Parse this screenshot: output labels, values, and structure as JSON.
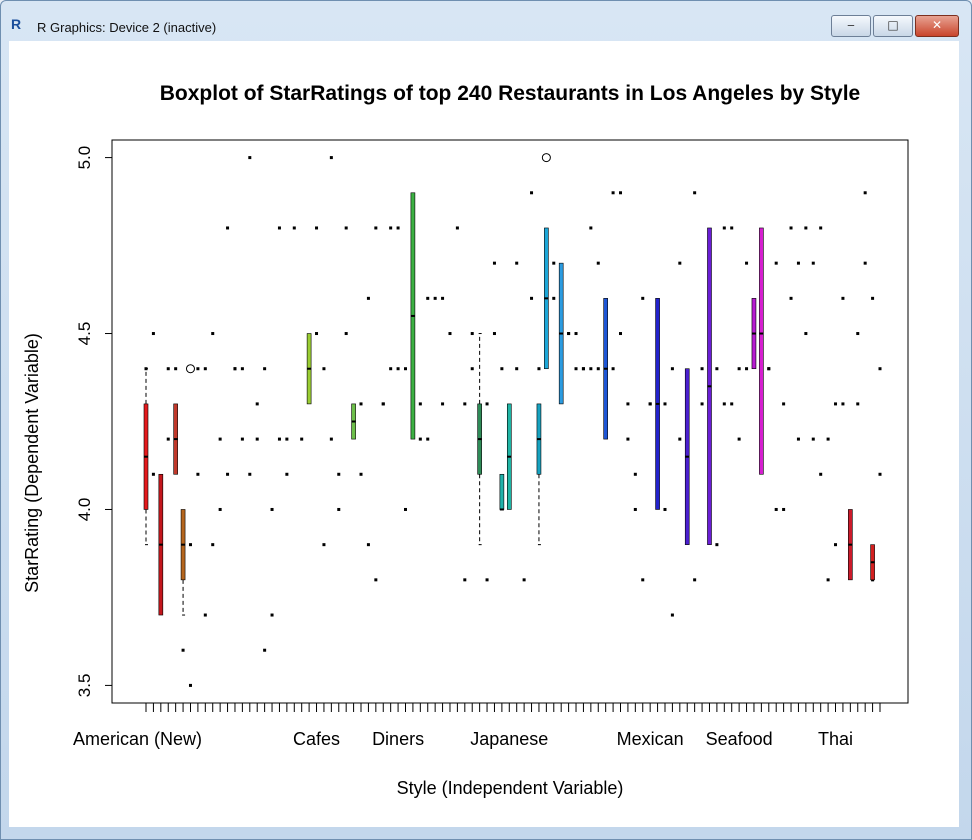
{
  "window": {
    "title": "R Graphics: Device 2 (inactive)",
    "app_icon": "R",
    "minimize_glyph": "‒",
    "maximize_glyph": "□",
    "close_glyph": "✕"
  },
  "chart_data": {
    "type": "boxplot",
    "title": "Boxplot of StarRatings of  top 240 Restaurants in Los Angeles by Style",
    "xlabel": "Style (Independent Variable)",
    "ylabel": "StarRating (Dependent Variable)",
    "ylim": [
      3.45,
      5.05
    ],
    "y_ticks": [
      "3.5",
      "4.0",
      "4.5",
      "5.0"
    ],
    "y_tick_values": [
      3.5,
      4.0,
      4.5,
      5.0
    ],
    "n_categories": 100,
    "x_tick_labels": [
      {
        "label": "American (New)",
        "index": 1
      },
      {
        "label": "Cafes",
        "index": 24
      },
      {
        "label": "Diners",
        "index": 35
      },
      {
        "label": "Japanese",
        "index": 50
      },
      {
        "label": "Mexican",
        "index": 69
      },
      {
        "label": "Seafood",
        "index": 81
      },
      {
        "label": "Thai",
        "index": 94
      }
    ],
    "grid": false,
    "boxes": [
      {
        "index": 1,
        "q1": 4.0,
        "q3": 4.3,
        "median": 4.15,
        "lower": 3.9,
        "upper": 4.4,
        "color": "#e31a1c"
      },
      {
        "index": 3,
        "q1": 3.7,
        "q3": 4.1,
        "median": 3.9,
        "lower": 3.7,
        "upper": 4.1,
        "color": "#c4161c"
      },
      {
        "index": 5,
        "q1": 4.1,
        "q3": 4.3,
        "median": 4.2,
        "lower": 4.1,
        "upper": 4.3,
        "color": "#c0392b"
      },
      {
        "index": 6,
        "q1": 3.8,
        "q3": 4.0,
        "median": 3.9,
        "lower": 3.7,
        "upper": 4.0,
        "color": "#b5651d"
      },
      {
        "index": 23,
        "q1": 4.3,
        "q3": 4.5,
        "median": 4.4,
        "lower": 4.3,
        "upper": 4.5,
        "color": "#9acd32"
      },
      {
        "index": 29,
        "q1": 4.2,
        "q3": 4.3,
        "median": 4.25,
        "lower": 4.2,
        "upper": 4.3,
        "color": "#6dbf4a"
      },
      {
        "index": 37,
        "q1": 4.2,
        "q3": 4.9,
        "median": 4.55,
        "lower": 4.2,
        "upper": 4.9,
        "color": "#3cb043"
      },
      {
        "index": 46,
        "q1": 4.1,
        "q3": 4.3,
        "median": 4.2,
        "lower": 3.9,
        "upper": 4.5,
        "color": "#2e8b57"
      },
      {
        "index": 49,
        "q1": 4.0,
        "q3": 4.1,
        "median": 4.0,
        "lower": 4.0,
        "upper": 4.1,
        "color": "#20b2aa"
      },
      {
        "index": 50,
        "q1": 4.0,
        "q3": 4.3,
        "median": 4.15,
        "lower": 4.0,
        "upper": 4.3,
        "color": "#1fb5a5"
      },
      {
        "index": 54,
        "q1": 4.1,
        "q3": 4.3,
        "median": 4.2,
        "lower": 3.9,
        "upper": 4.3,
        "color": "#17a2c0"
      },
      {
        "index": 55,
        "q1": 4.4,
        "q3": 4.8,
        "median": 4.6,
        "lower": 4.4,
        "upper": 4.8,
        "color": "#1ca7d8"
      },
      {
        "index": 57,
        "q1": 4.3,
        "q3": 4.7,
        "median": 4.5,
        "lower": 4.3,
        "upper": 4.7,
        "color": "#2b9be0"
      },
      {
        "index": 63,
        "q1": 4.2,
        "q3": 4.6,
        "median": 4.4,
        "lower": 4.2,
        "upper": 4.6,
        "color": "#1e56d6"
      },
      {
        "index": 70,
        "q1": 4.0,
        "q3": 4.6,
        "median": 4.3,
        "lower": 4.0,
        "upper": 4.6,
        "color": "#2222cc"
      },
      {
        "index": 74,
        "q1": 3.9,
        "q3": 4.4,
        "median": 4.15,
        "lower": 3.9,
        "upper": 4.4,
        "color": "#4a1fd0"
      },
      {
        "index": 77,
        "q1": 3.9,
        "q3": 4.8,
        "median": 4.35,
        "lower": 3.9,
        "upper": 4.8,
        "color": "#6a1ed6"
      },
      {
        "index": 83,
        "q1": 4.4,
        "q3": 4.6,
        "median": 4.5,
        "lower": 4.4,
        "upper": 4.6,
        "color": "#b61bd0"
      },
      {
        "index": 84,
        "q1": 4.1,
        "q3": 4.8,
        "median": 4.5,
        "lower": 4.1,
        "upper": 4.8,
        "color": "#d61ed0"
      },
      {
        "index": 96,
        "q1": 3.8,
        "q3": 4.0,
        "median": 3.9,
        "lower": 3.8,
        "upper": 4.0,
        "color": "#cc1a2a"
      },
      {
        "index": 99,
        "q1": 3.8,
        "q3": 3.9,
        "median": 3.85,
        "lower": 3.8,
        "upper": 3.9,
        "color": "#d31f1f"
      }
    ],
    "outliers": [
      {
        "index": 7,
        "value": 4.4
      },
      {
        "index": 55,
        "value": 5.0
      }
    ],
    "points": [
      [
        1,
        4.4
      ],
      [
        2,
        4.5
      ],
      [
        2,
        4.1
      ],
      [
        4,
        4.4
      ],
      [
        4,
        4.2
      ],
      [
        5,
        4.4
      ],
      [
        6,
        3.6
      ],
      [
        7,
        3.5
      ],
      [
        7,
        3.9
      ],
      [
        8,
        4.1
      ],
      [
        8,
        4.4
      ],
      [
        9,
        3.7
      ],
      [
        9,
        4.4
      ],
      [
        10,
        4.5
      ],
      [
        10,
        3.9
      ],
      [
        11,
        4.0
      ],
      [
        11,
        4.2
      ],
      [
        12,
        4.8
      ],
      [
        12,
        4.1
      ],
      [
        13,
        4.4
      ],
      [
        13,
        4.4
      ],
      [
        14,
        4.4
      ],
      [
        14,
        4.2
      ],
      [
        15,
        5.0
      ],
      [
        15,
        4.1
      ],
      [
        16,
        4.3
      ],
      [
        16,
        4.2
      ],
      [
        17,
        3.6
      ],
      [
        17,
        4.4
      ],
      [
        18,
        3.7
      ],
      [
        18,
        4.0
      ],
      [
        19,
        4.2
      ],
      [
        19,
        4.8
      ],
      [
        20,
        4.2
      ],
      [
        20,
        4.1
      ],
      [
        21,
        4.8
      ],
      [
        22,
        4.2
      ],
      [
        24,
        4.5
      ],
      [
        24,
        4.8
      ],
      [
        25,
        3.9
      ],
      [
        25,
        4.4
      ],
      [
        26,
        5.0
      ],
      [
        26,
        4.2
      ],
      [
        27,
        4.0
      ],
      [
        27,
        4.1
      ],
      [
        28,
        4.8
      ],
      [
        28,
        4.5
      ],
      [
        30,
        4.3
      ],
      [
        30,
        4.1
      ],
      [
        31,
        3.9
      ],
      [
        31,
        4.6
      ],
      [
        32,
        3.8
      ],
      [
        32,
        4.8
      ],
      [
        33,
        4.3
      ],
      [
        33,
        4.3
      ],
      [
        34,
        4.8
      ],
      [
        34,
        4.4
      ],
      [
        35,
        4.4
      ],
      [
        35,
        4.8
      ],
      [
        36,
        4.0
      ],
      [
        36,
        4.4
      ],
      [
        38,
        4.3
      ],
      [
        38,
        4.2
      ],
      [
        39,
        4.6
      ],
      [
        39,
        4.2
      ],
      [
        40,
        4.6
      ],
      [
        41,
        4.6
      ],
      [
        41,
        4.3
      ],
      [
        42,
        4.5
      ],
      [
        43,
        4.8
      ],
      [
        44,
        3.8
      ],
      [
        44,
        4.3
      ],
      [
        45,
        4.4
      ],
      [
        45,
        4.5
      ],
      [
        47,
        3.8
      ],
      [
        47,
        4.3
      ],
      [
        48,
        4.5
      ],
      [
        48,
        4.7
      ],
      [
        49,
        4.4
      ],
      [
        51,
        4.4
      ],
      [
        51,
        4.7
      ],
      [
        52,
        3.8
      ],
      [
        53,
        4.9
      ],
      [
        53,
        4.6
      ],
      [
        54,
        4.4
      ],
      [
        56,
        4.7
      ],
      [
        56,
        4.6
      ],
      [
        58,
        4.5
      ],
      [
        58,
        4.5
      ],
      [
        59,
        4.4
      ],
      [
        59,
        4.5
      ],
      [
        60,
        4.4
      ],
      [
        60,
        4.4
      ],
      [
        61,
        4.4
      ],
      [
        61,
        4.8
      ],
      [
        62,
        4.4
      ],
      [
        62,
        4.7
      ],
      [
        64,
        4.9
      ],
      [
        64,
        4.4
      ],
      [
        65,
        4.5
      ],
      [
        65,
        4.9
      ],
      [
        66,
        4.2
      ],
      [
        66,
        4.3
      ],
      [
        67,
        4.1
      ],
      [
        67,
        4.0
      ],
      [
        68,
        3.8
      ],
      [
        68,
        4.6
      ],
      [
        69,
        4.3
      ],
      [
        69,
        4.3
      ],
      [
        71,
        4.0
      ],
      [
        71,
        4.3
      ],
      [
        72,
        3.7
      ],
      [
        72,
        4.4
      ],
      [
        73,
        4.2
      ],
      [
        73,
        4.7
      ],
      [
        75,
        4.9
      ],
      [
        75,
        3.8
      ],
      [
        76,
        4.4
      ],
      [
        76,
        4.3
      ],
      [
        78,
        4.4
      ],
      [
        78,
        3.9
      ],
      [
        79,
        4.8
      ],
      [
        79,
        4.3
      ],
      [
        80,
        4.3
      ],
      [
        80,
        4.8
      ],
      [
        81,
        4.4
      ],
      [
        81,
        4.2
      ],
      [
        82,
        4.7
      ],
      [
        82,
        4.4
      ],
      [
        85,
        4.4
      ],
      [
        85,
        4.4
      ],
      [
        86,
        4.0
      ],
      [
        86,
        4.7
      ],
      [
        87,
        4.0
      ],
      [
        87,
        4.3
      ],
      [
        88,
        4.8
      ],
      [
        88,
        4.6
      ],
      [
        89,
        4.7
      ],
      [
        89,
        4.2
      ],
      [
        90,
        4.8
      ],
      [
        90,
        4.5
      ],
      [
        91,
        4.2
      ],
      [
        91,
        4.7
      ],
      [
        92,
        4.8
      ],
      [
        92,
        4.1
      ],
      [
        93,
        3.8
      ],
      [
        93,
        4.2
      ],
      [
        94,
        3.9
      ],
      [
        94,
        4.3
      ],
      [
        95,
        4.6
      ],
      [
        95,
        4.3
      ],
      [
        97,
        4.5
      ],
      [
        97,
        4.3
      ],
      [
        98,
        4.7
      ],
      [
        98,
        4.9
      ],
      [
        99,
        4.6
      ],
      [
        100,
        4.1
      ],
      [
        100,
        4.4
      ],
      [
        99,
        3.8
      ]
    ]
  }
}
